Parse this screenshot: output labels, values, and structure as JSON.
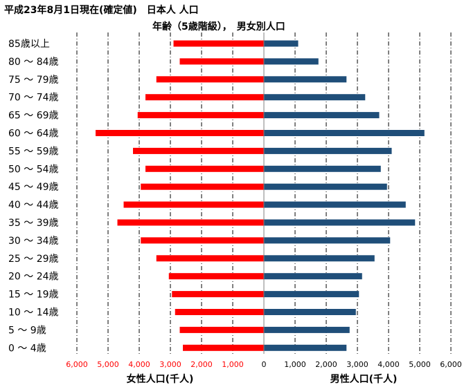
{
  "header": {
    "title": "平成23年8月1日現在(確定値)　日本人 人口",
    "subtitle": "年齢（5歳階級），　男女別人口"
  },
  "colors": {
    "female": "#ff0000",
    "male": "#1f4e79",
    "female_ticks": "#ff0000",
    "male_ticks": "#000000"
  },
  "chart_data": {
    "type": "bar",
    "orientation": "horizontal-population-pyramid",
    "categories": [
      "85歳以上",
      "80 ～ 84歳",
      "75 ～ 79歳",
      "70 ～ 74歳",
      "65 ～ 69歳",
      "60 ～ 64歳",
      "55 ～ 59歳",
      "50 ～ 54歳",
      "45 ～ 49歳",
      "40 ～ 44歳",
      "35 ～ 39歳",
      "30 ～ 34歳",
      "25 ～ 29歳",
      "20 ～ 24歳",
      "15 ～ 19歳",
      "10 ～ 14歳",
      "5 ～ 9歳",
      "0 ～ 4歳"
    ],
    "series": [
      {
        "values": [
          2900,
          2700,
          3450,
          3800,
          4050,
          5400,
          4200,
          3800,
          3950,
          4500,
          4700,
          3950,
          3450,
          3050,
          2950,
          2850,
          2700,
          2600
        ]
      },
      {
        "values": [
          1100,
          1750,
          2650,
          3250,
          3700,
          5150,
          4100,
          3750,
          3950,
          4550,
          4850,
          4050,
          3550,
          3150,
          3050,
          2950,
          2750,
          2650
        ]
      }
    ],
    "x_ticks": [
      "6,000",
      "5,000",
      "4,000",
      "3,000",
      "2,000",
      "1,000",
      "0",
      "1,000",
      "2,000",
      "3,000",
      "4,000",
      "5,000",
      "6,000"
    ],
    "xlim": [
      0,
      6000
    ],
    "xlabel_left": "女性人口(千人)",
    "xlabel_right": "男性人口(千人)",
    "grid": "vertical dash-dot"
  }
}
